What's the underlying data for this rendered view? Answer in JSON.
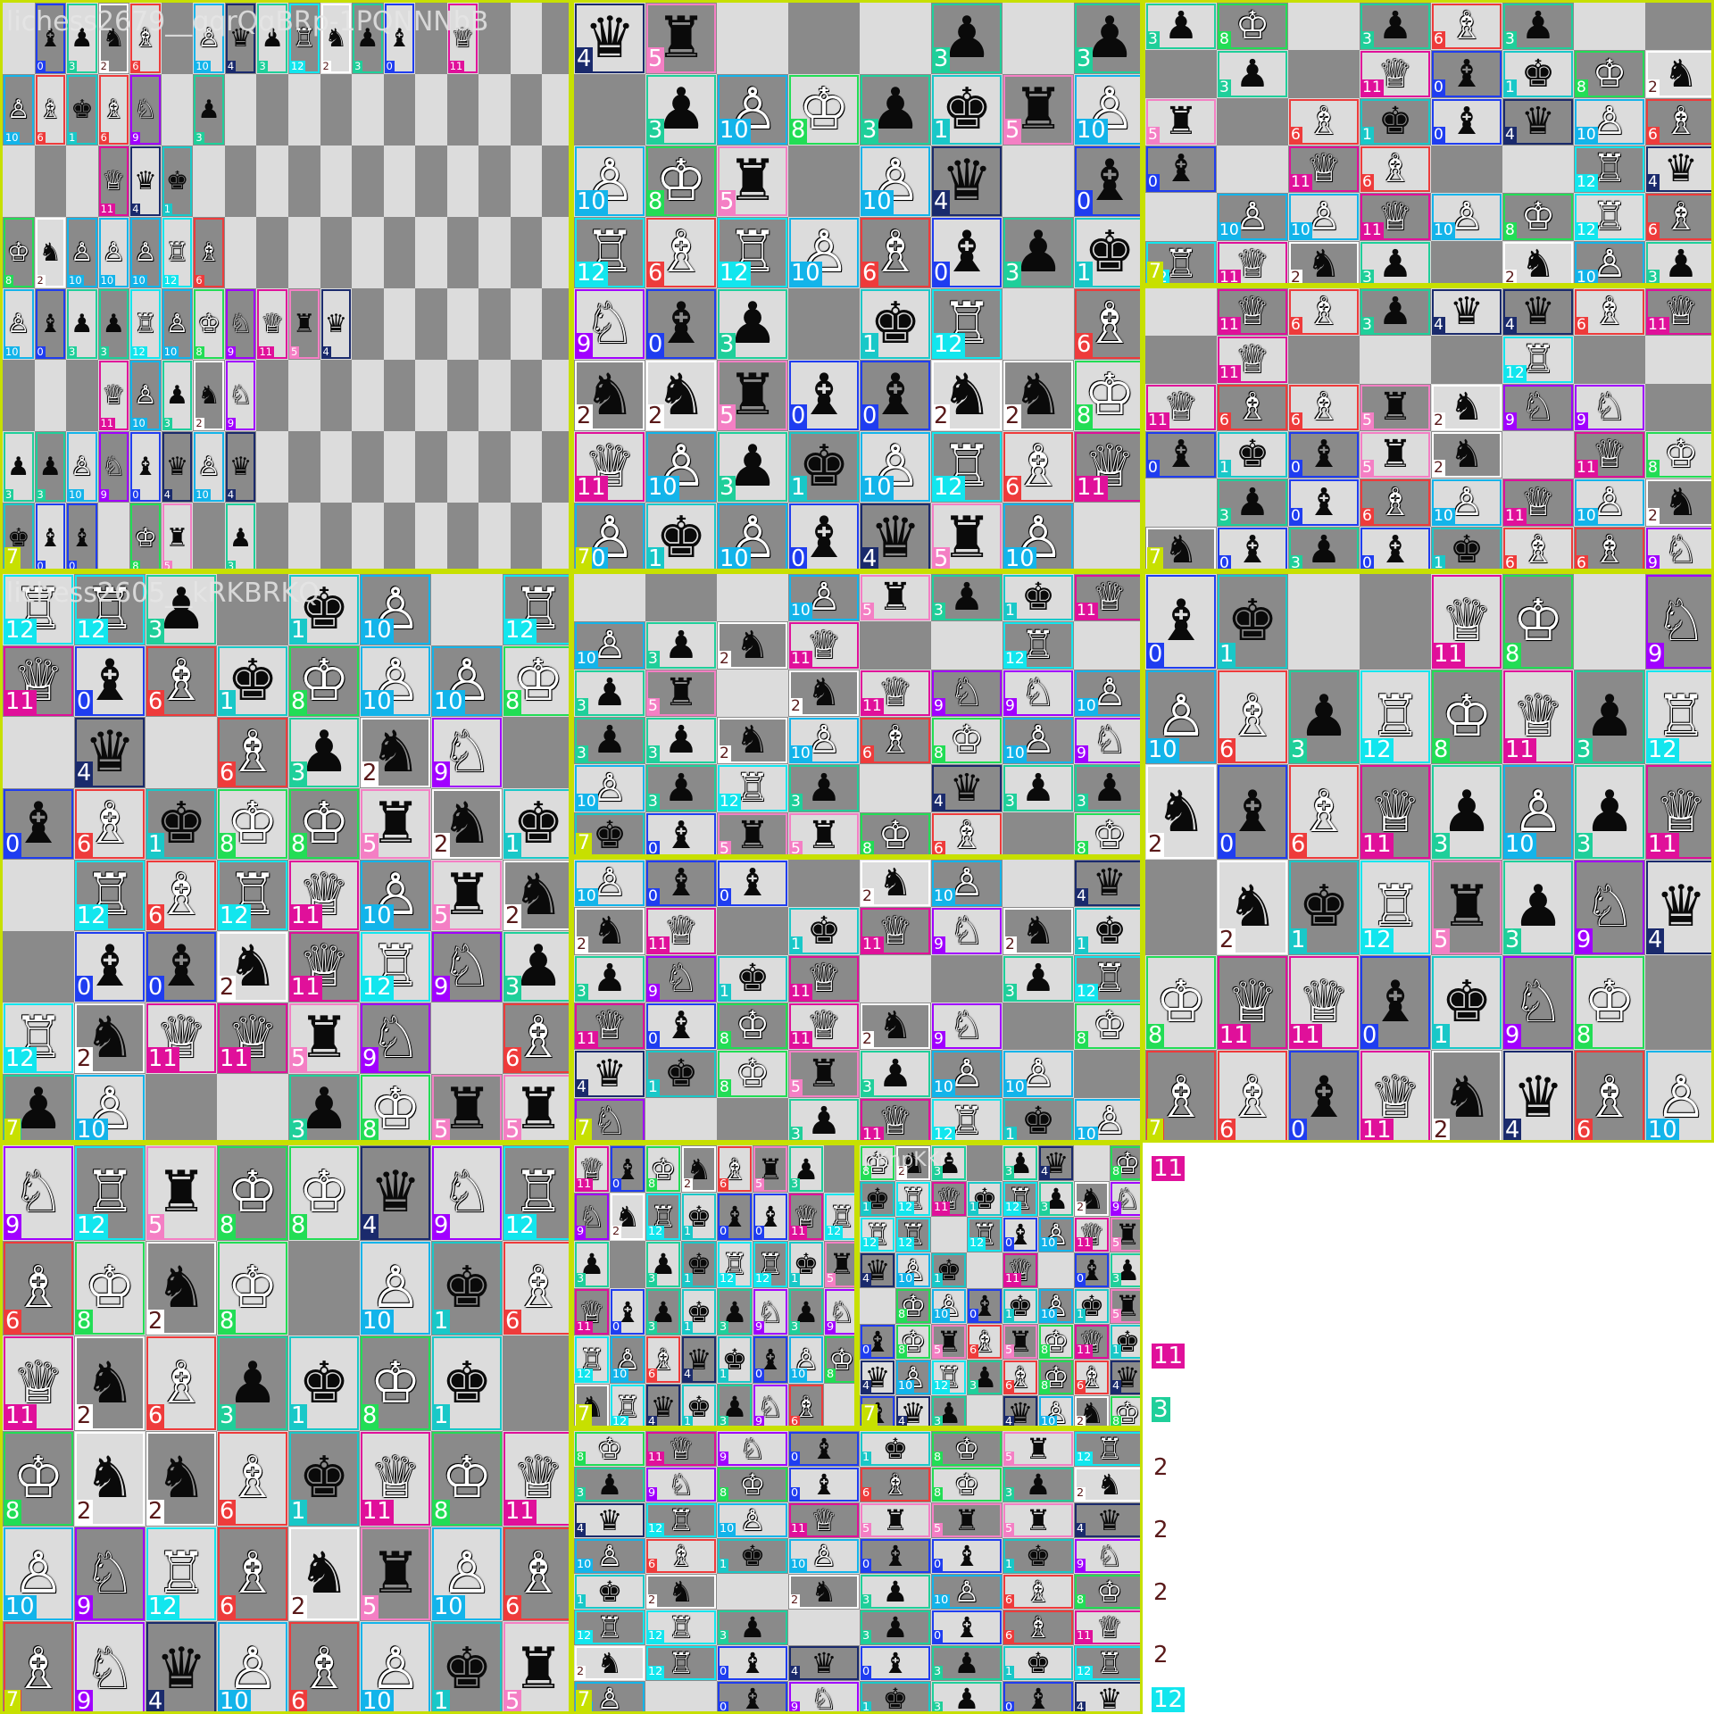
{
  "class_colors": {
    "0": "#1f3df0",
    "1": "#19c8c8",
    "2": "#ffffff",
    "3": "#1fcf9a",
    "4": "#1a2a6c",
    "5": "#f47fc4",
    "6": "#ee3b3b",
    "7": "#c7e000",
    "8": "#22dd55",
    "9": "#a100ff",
    "10": "#13b4ea",
    "11": "#e0109a",
    "12": "#12e6ee"
  },
  "piece_classes": {
    "0": {
      "symbol": "♝",
      "color": "black"
    },
    "1": {
      "symbol": "♚",
      "color": "black"
    },
    "2": {
      "symbol": "♞",
      "color": "black"
    },
    "3": {
      "symbol": "♟",
      "color": "black"
    },
    "4": {
      "symbol": "♛",
      "color": "black"
    },
    "5": {
      "symbol": "♜",
      "color": "black"
    },
    "6": {
      "symbol": "♗",
      "color": "white"
    },
    "8": {
      "symbol": "♔",
      "color": "white"
    },
    "9": {
      "symbol": "♘",
      "color": "white"
    },
    "10": {
      "symbol": "♙",
      "color": "white"
    },
    "11": {
      "symbol": "♕",
      "color": "white"
    },
    "12": {
      "symbol": "♖",
      "color": "white"
    }
  },
  "board_class": "7",
  "tiles": [
    {
      "caption": "lichess2679__qqrQqBRp-1PQNNNbB",
      "board": "1bpnB1PqpRnpb1Q3-PBkBN1p-3Qqk2-KnPPPRB1-PbppRPKNQrq-3QPpnN-ppPNbqPq-kbb1Kr1p"
    },
    {
      "caption": "",
      "board": "qr3p1p-1pPKpkrP-PKr1Pq1b-RBRPBbpk-Nbp1kR1B-nnrbbnnK-QPpkPRBQ-PkPbqrP1"
    },
    {
      "caption": "",
      "board": "pK1pBp-1p1QbkKn-r1BkbqPB-b1QB2Rq-1PPQPKRB-RQnp1nPp"
    },
    {
      "caption": "",
      "board": "1QBpqqBQ-1Q3R2-QBBrnNN1-bkbrn1QK-1pbBPQPn-nbpbkBBN"
    },
    {
      "caption": "lichess2605__kRKBRKQ",
      "board": "RRp1kP1R-QbBkKPPK-1q1BpnN1-bBkKKrnk-1RBRQPrn-1bbnQRNp-RnQQrN1B-pP2pKrr"
    },
    {
      "caption": "",
      "board": "3PrpkQ-PpnQ2R1-pr1nQNNP-ppnPBKPN-PpRp1qpp-kbrrKB1K"
    },
    {
      "caption": "",
      "board": "Pbb1nP1q-nQ1kQNnk-pNkQ2pR-QbKQnN1K-qkKrpPP1-N2pQRkP"
    },
    {
      "caption": "",
      "board": "bk2QK1N-PBpRKQpR-nbBQpPpQ-1nkRrpNq-KQQbkNK1-BBbQnqBP"
    },
    {
      "caption": "",
      "board": "NRrKKqNR-BKnK1PkB-QnBpkKk1-KnnBkQKQ-PNRBnrPB-BNqPBPkr"
    },
    {
      "caption": "",
      "board": "QbKnBrp1-NnRkbbQR-p1pkRRkr-QbpkpNpN-RPBqkbPK-nRqkpNB1"
    },
    {
      "caption": "pKnpKKr-",
      "board": "Knp1pq1K-kRQkRpnN-RR1RbPQr-qPk1Q1bp-1KPbkPkr-bKrBrKQk-qPRpBKBq-bqp1qPnK"
    },
    {
      "caption": "",
      "board": "KQNbkKrR-pNKbBKpn-qRPQrrrq-PBkPbbkN-kn1npPBK-RRp1pbBQ-nRbqbpkR-P1bNkpbq"
    }
  ],
  "stray_labels": [
    "11",
    "11",
    "3",
    "2",
    "2",
    "2",
    "2",
    "12"
  ]
}
